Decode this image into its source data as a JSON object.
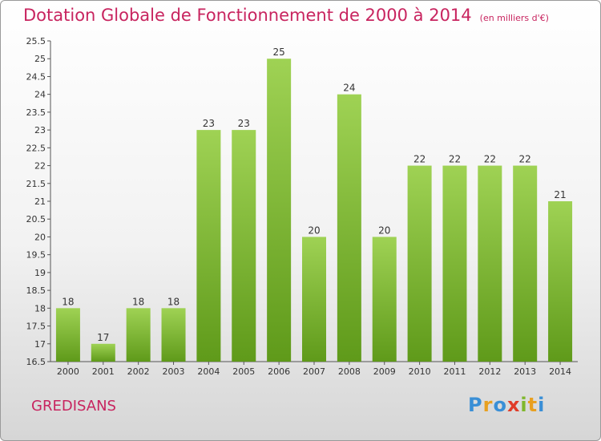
{
  "header": {
    "title": "Dotation Globale de Fonctionnement de 2000 à 2014",
    "subtitle": "(en milliers d'€)"
  },
  "footer": {
    "commune": "GREDISANS",
    "logo": [
      "P",
      "r",
      "o",
      "x",
      "i",
      "t",
      "i"
    ],
    "logo_colors": [
      "#3a8fd6",
      "#e8a020",
      "#3a8fd6",
      "#e03c28",
      "#7fb72c",
      "#e8a020",
      "#3a8fd6"
    ]
  },
  "chart_data": {
    "type": "bar",
    "title": "Dotation Globale de Fonctionnement de 2000 à 2014",
    "subtitle": "(en milliers d'€)",
    "categories": [
      "2000",
      "2001",
      "2002",
      "2003",
      "2004",
      "2005",
      "2006",
      "2007",
      "2008",
      "2009",
      "2010",
      "2011",
      "2012",
      "2013",
      "2014"
    ],
    "values": [
      18,
      17,
      18,
      18,
      23,
      23,
      25,
      20,
      24,
      20,
      22,
      22,
      22,
      22,
      21
    ],
    "ylim": [
      16.5,
      25.5
    ],
    "yticks": [
      "16.5",
      "17",
      "17.5",
      "18",
      "18.5",
      "19",
      "19.5",
      "20",
      "20.5",
      "21",
      "21.5",
      "22",
      "22.5",
      "23",
      "23.5",
      "24",
      "24.5",
      "25",
      "25.5"
    ],
    "bar_color": "#8cc63f",
    "grid": false,
    "legend": "none"
  }
}
